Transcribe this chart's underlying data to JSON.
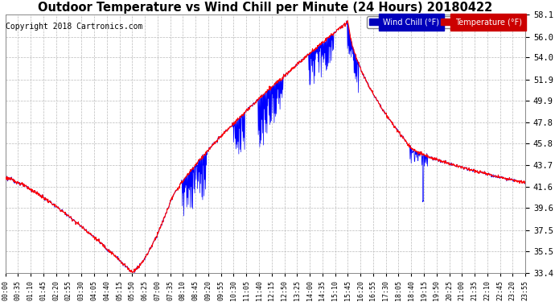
{
  "title": "Outdoor Temperature vs Wind Chill per Minute (24 Hours) 20180422",
  "copyright": "Copyright 2018 Cartronics.com",
  "ylabel_right_ticks": [
    58.1,
    56.0,
    54.0,
    51.9,
    49.9,
    47.8,
    45.8,
    43.7,
    41.6,
    39.6,
    37.5,
    35.5,
    33.4
  ],
  "ymin": 33.4,
  "ymax": 58.1,
  "xtick_labels": [
    "00:00",
    "00:35",
    "01:10",
    "01:45",
    "02:20",
    "02:55",
    "03:30",
    "04:05",
    "04:40",
    "05:15",
    "05:50",
    "06:25",
    "07:00",
    "07:35",
    "08:10",
    "08:45",
    "09:20",
    "09:55",
    "10:30",
    "11:05",
    "11:40",
    "12:15",
    "12:50",
    "13:25",
    "14:00",
    "14:35",
    "15:10",
    "15:45",
    "16:20",
    "16:55",
    "17:30",
    "18:05",
    "18:40",
    "19:15",
    "19:50",
    "20:25",
    "21:00",
    "21:35",
    "22:10",
    "22:45",
    "23:20",
    "23:55"
  ],
  "temp_color": "#ff0000",
  "wind_chill_color": "#0000ff",
  "bg_color": "#ffffff",
  "grid_color": "#bbbbbb",
  "title_fontsize": 10.5,
  "copyright_fontsize": 7,
  "figwidth": 6.9,
  "figheight": 3.75,
  "dpi": 100
}
